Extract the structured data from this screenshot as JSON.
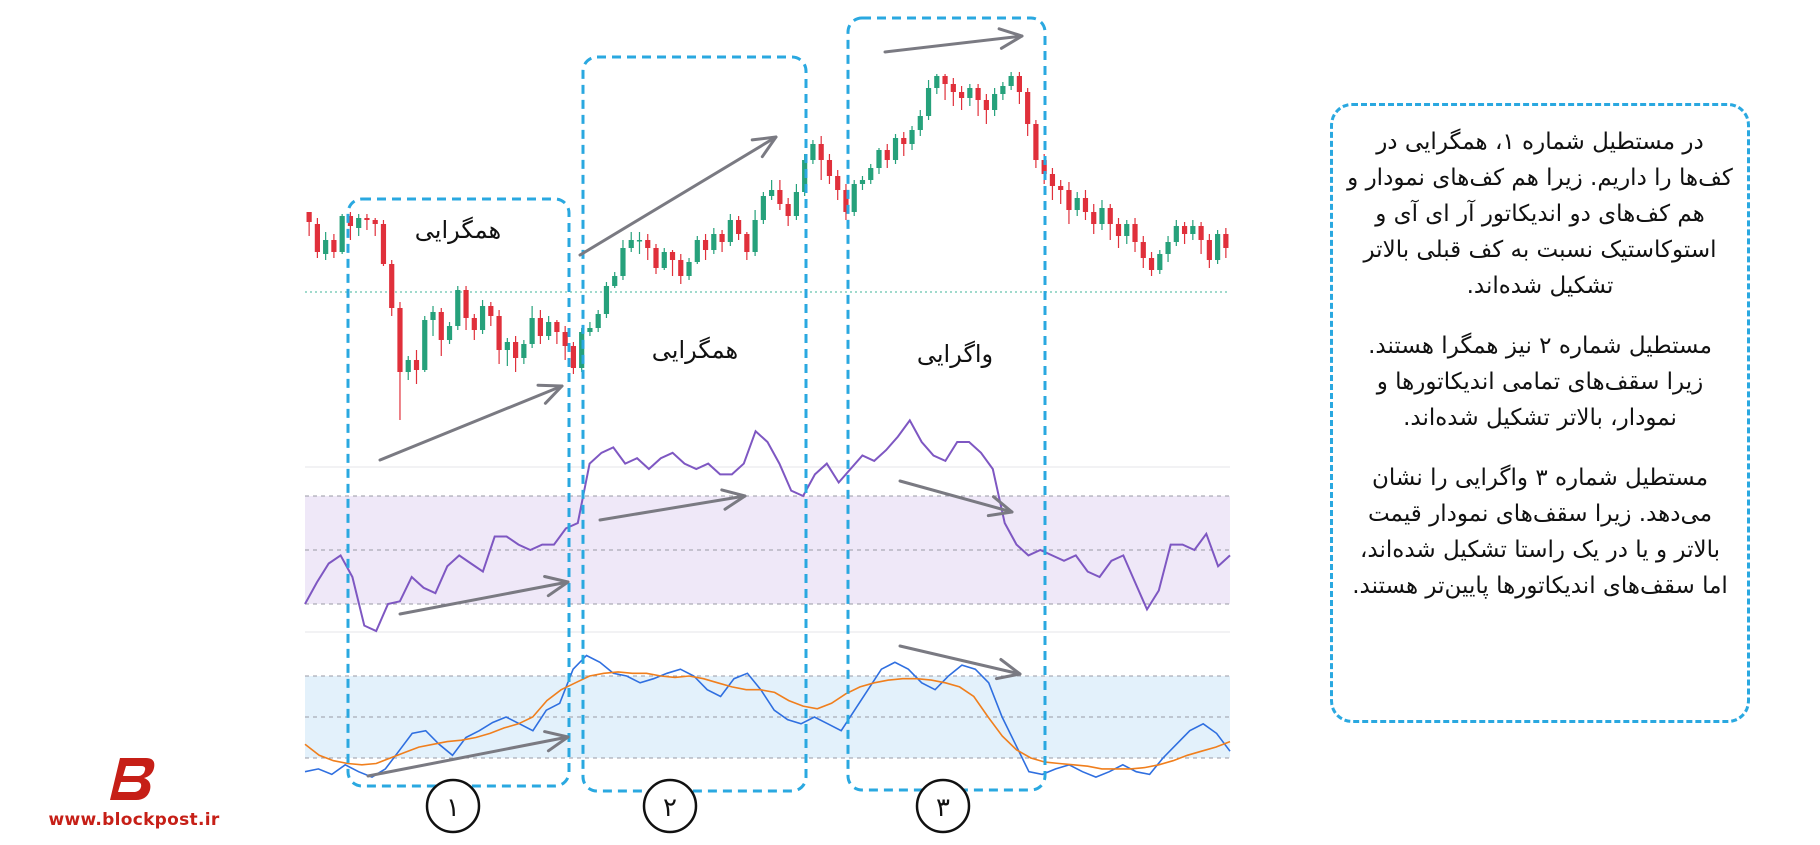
{
  "chart_data": [
    {
      "type": "candlestick",
      "panel": "price",
      "candles": [
        [
          124,
          119,
          112,
          124
        ],
        [
          118,
          104,
          101,
          121
        ],
        [
          103,
          110,
          100,
          114
        ],
        [
          110,
          104,
          101,
          113
        ],
        [
          104,
          122,
          103,
          123
        ],
        [
          122,
          117,
          110,
          124
        ],
        [
          116,
          121,
          112,
          123
        ],
        [
          121,
          120,
          115,
          123
        ],
        [
          120,
          118,
          112,
          121
        ],
        [
          118,
          98,
          97,
          120
        ],
        [
          98,
          76,
          72,
          100
        ],
        [
          76,
          44,
          20,
          79
        ],
        [
          44,
          50,
          40,
          52
        ],
        [
          50,
          45,
          38,
          55
        ],
        [
          45,
          70,
          44,
          72
        ],
        [
          70,
          74,
          62,
          77
        ],
        [
          74,
          60,
          52,
          76
        ],
        [
          60,
          67,
          58,
          69
        ],
        [
          67,
          85,
          65,
          87
        ],
        [
          85,
          71,
          65,
          87
        ],
        [
          71,
          65,
          60,
          73
        ],
        [
          65,
          77,
          63,
          80
        ],
        [
          77,
          72,
          67,
          79
        ],
        [
          72,
          55,
          48,
          75
        ],
        [
          55,
          59,
          47,
          61
        ],
        [
          59,
          51,
          44,
          62
        ],
        [
          51,
          58,
          48,
          60
        ],
        [
          58,
          71,
          56,
          77
        ],
        [
          71,
          62,
          58,
          75
        ],
        [
          62,
          69,
          60,
          72
        ],
        [
          69,
          64,
          58,
          70
        ],
        [
          64,
          57,
          50,
          67
        ],
        [
          57,
          46,
          43,
          59
        ],
        [
          46,
          64,
          44,
          66
        ],
        [
          64,
          66,
          62,
          69
        ],
        [
          66,
          73,
          64,
          75
        ],
        [
          73,
          87,
          71,
          89
        ],
        [
          87,
          92,
          86,
          94
        ],
        [
          92,
          106,
          90,
          110
        ],
        [
          106,
          110,
          104,
          114
        ],
        [
          110,
          110,
          103,
          114
        ],
        [
          110,
          106,
          100,
          113
        ],
        [
          106,
          96,
          93,
          108
        ],
        [
          96,
          104,
          95,
          106
        ],
        [
          104,
          100,
          92,
          105
        ],
        [
          100,
          92,
          88,
          103
        ],
        [
          92,
          99,
          90,
          101
        ],
        [
          99,
          110,
          98,
          112
        ],
        [
          110,
          105,
          100,
          113
        ],
        [
          105,
          113,
          103,
          116
        ],
        [
          113,
          109,
          104,
          115
        ],
        [
          109,
          120,
          107,
          123
        ],
        [
          120,
          113,
          110,
          122
        ],
        [
          113,
          104,
          100,
          114
        ],
        [
          104,
          120,
          102,
          125
        ],
        [
          120,
          132,
          118,
          134
        ],
        [
          132,
          135,
          130,
          140
        ],
        [
          135,
          128,
          125,
          140
        ],
        [
          128,
          122,
          117,
          131
        ],
        [
          122,
          134,
          120,
          138
        ],
        [
          134,
          150,
          132,
          153
        ],
        [
          150,
          158,
          148,
          160
        ],
        [
          158,
          150,
          140,
          162
        ],
        [
          150,
          142,
          138,
          153
        ],
        [
          142,
          135,
          130,
          145
        ],
        [
          135,
          124,
          120,
          138
        ],
        [
          124,
          138,
          122,
          140
        ],
        [
          138,
          140,
          135,
          142
        ],
        [
          140,
          146,
          138,
          148
        ],
        [
          146,
          155,
          143,
          156
        ],
        [
          155,
          150,
          146,
          158
        ],
        [
          150,
          161,
          148,
          163
        ],
        [
          161,
          158,
          152,
          164
        ],
        [
          158,
          165,
          155,
          167
        ],
        [
          165,
          172,
          162,
          175
        ],
        [
          172,
          186,
          170,
          190
        ],
        [
          186,
          192,
          183,
          193
        ],
        [
          192,
          188,
          180,
          193
        ],
        [
          188,
          184,
          177,
          191
        ],
        [
          184,
          181,
          175,
          187
        ],
        [
          181,
          186,
          177,
          188
        ],
        [
          186,
          180,
          172,
          188
        ],
        [
          180,
          175,
          168,
          183
        ],
        [
          175,
          183,
          172,
          186
        ],
        [
          183,
          187,
          180,
          189
        ],
        [
          187,
          192,
          185,
          194
        ],
        [
          192,
          184,
          178,
          194
        ],
        [
          184,
          168,
          162,
          186
        ],
        [
          168,
          150,
          146,
          170
        ],
        [
          150,
          143,
          138,
          153
        ],
        [
          143,
          137,
          130,
          146
        ],
        [
          137,
          135,
          128,
          140
        ],
        [
          135,
          125,
          118,
          139
        ],
        [
          125,
          131,
          122,
          134
        ],
        [
          131,
          124,
          120,
          135
        ],
        [
          124,
          118,
          113,
          128
        ],
        [
          118,
          126,
          115,
          130
        ],
        [
          126,
          118,
          110,
          128
        ],
        [
          118,
          112,
          106,
          121
        ],
        [
          112,
          118,
          108,
          120
        ],
        [
          118,
          109,
          104,
          121
        ],
        [
          109,
          101,
          96,
          112
        ],
        [
          101,
          95,
          92,
          104
        ],
        [
          95,
          103,
          93,
          105
        ],
        [
          103,
          109,
          99,
          112
        ],
        [
          109,
          117,
          107,
          120
        ],
        [
          117,
          113,
          108,
          119
        ],
        [
          113,
          117,
          110,
          120
        ],
        [
          117,
          110,
          103,
          119
        ],
        [
          110,
          100,
          96,
          113
        ],
        [
          100,
          113,
          98,
          115
        ],
        [
          113,
          106,
          101,
          116
        ]
      ]
    },
    {
      "type": "line",
      "panel": "rsi",
      "ylim": [
        0,
        100
      ],
      "bands": [
        30,
        50,
        70
      ],
      "series": [
        {
          "values": [
            30,
            38,
            45,
            48,
            40,
            22,
            20,
            30,
            31,
            40,
            36,
            34,
            44,
            48,
            45,
            42,
            55,
            55,
            52,
            50,
            52,
            52,
            58,
            60,
            82,
            86,
            88,
            82,
            84,
            80,
            84,
            86,
            82,
            80,
            82,
            78,
            78,
            82,
            94,
            90,
            82,
            72,
            70,
            78,
            82,
            75,
            80,
            85,
            83,
            87,
            92,
            98,
            90,
            85,
            83,
            90,
            90,
            86,
            80,
            60,
            52,
            48,
            50,
            48,
            46,
            48,
            42,
            40,
            46,
            48,
            38,
            28,
            35,
            52,
            52,
            50,
            56,
            44,
            48
          ]
        }
      ]
    },
    {
      "type": "line",
      "panel": "stochastic",
      "ylim": [
        0,
        100
      ],
      "bands": [
        20,
        50,
        80
      ],
      "series": [
        {
          "color": "#2f6fe0",
          "values": [
            10,
            12,
            8,
            15,
            10,
            6,
            12,
            25,
            38,
            40,
            30,
            22,
            35,
            40,
            46,
            50,
            45,
            40,
            55,
            60,
            85,
            95,
            90,
            82,
            80,
            75,
            78,
            82,
            85,
            80,
            70,
            65,
            78,
            82,
            70,
            55,
            48,
            45,
            50,
            45,
            40,
            55,
            70,
            85,
            90,
            85,
            75,
            70,
            80,
            88,
            85,
            75,
            50,
            30,
            10,
            8,
            12,
            15,
            10,
            6,
            10,
            15,
            10,
            8,
            20,
            30,
            40,
            45,
            38,
            25
          ]
        },
        {
          "color": "#f07f1d",
          "values": [
            30,
            22,
            18,
            16,
            15,
            16,
            20,
            24,
            28,
            30,
            32,
            33,
            35,
            38,
            42,
            45,
            50,
            62,
            70,
            75,
            80,
            82,
            83,
            82,
            82,
            80,
            79,
            80,
            78,
            75,
            72,
            70,
            70,
            68,
            62,
            58,
            56,
            60,
            67,
            72,
            75,
            77,
            78,
            78,
            77,
            75,
            72,
            65,
            50,
            36,
            26,
            20,
            17,
            16,
            15,
            14,
            12,
            12,
            12,
            13,
            15,
            18,
            22,
            25,
            28,
            32
          ]
        }
      ]
    }
  ],
  "boxes": [
    {
      "label": "همگرایی",
      "number": "۱"
    },
    {
      "label": "همگرایی",
      "number": "۲"
    },
    {
      "label": "واگرایی",
      "number": "۳"
    }
  ],
  "note": {
    "p1": "در مستطیل شماره ۱، همگرایی در کف‌ها را داریم. زیرا هم کف‌های نمودار و هم کف‌های دو اندیکاتور آر ای آی و استوکاستیک نسبت به کف قبلی بالاتر تشکیل شده‌اند.",
    "p2": "مستطیل شماره ۲ نیز همگرا هستند. زیرا سقف‌های تمامی اندیکاتورها و نمودار، بالاتر تشکیل شده‌اند.",
    "p3": "مستطیل شماره ۳ واگرایی را نشان می‌دهد. زیرا سقف‌های نمودار قیمت بالاتر و یا در یک راستا تشکیل شده‌اند، اما سقف‌های اندیکاتورها پایین‌تر هستند."
  },
  "logo": {
    "url": "www.blockpost.ir"
  },
  "colors": {
    "up": "#26a17b",
    "down": "#e0303b",
    "rsi": "#7e57c2",
    "rsi_band": "#efe8f8",
    "stoch_band": "#e3f1fb",
    "box": "#2aa8e0",
    "arrow": "#7a7a82",
    "brand": "#c61f17"
  }
}
